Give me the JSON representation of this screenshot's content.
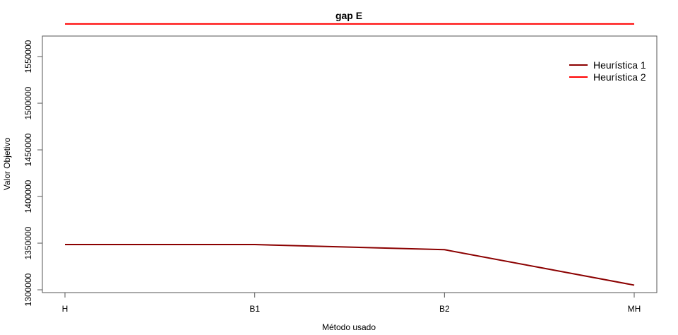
{
  "chart_data": {
    "type": "line",
    "title": "gap E",
    "xlabel": "Método usado",
    "ylabel": "Valor Objetivo",
    "categories": [
      "H",
      "B1",
      "B2",
      "MH"
    ],
    "yticks": [
      1300000,
      1350000,
      1400000,
      1450000,
      1500000,
      1550000
    ],
    "ytick_labels": [
      "1300000",
      "1350000",
      "1400000",
      "1450000",
      "1500000",
      "1550000"
    ],
    "ylim": [
      1297000,
      1572000
    ],
    "grid": false,
    "legend_position": "top-right",
    "series": [
      {
        "name": "Heurística 1",
        "color": "#8B0000",
        "values": [
          1348500,
          1348500,
          1343000,
          1305000
        ]
      },
      {
        "name": "Heurística 2",
        "color": "#FF0000",
        "values": [
          1585000,
          1585000,
          1585000,
          1585000
        ]
      }
    ]
  }
}
